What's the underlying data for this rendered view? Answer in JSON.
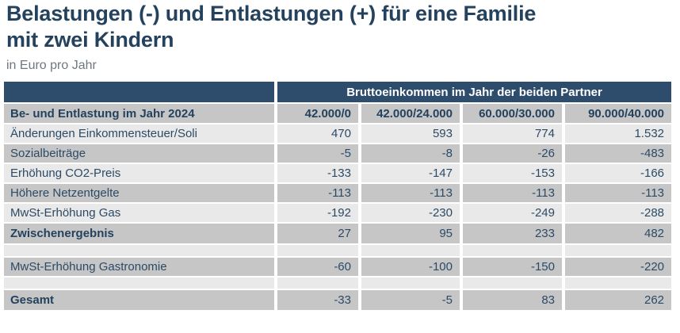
{
  "header": {
    "title_lines": [
      "Belastungen (-) und Entlastungen (+) für eine Familie",
      "mit zwei Kindern"
    ],
    "subtitle": "in Euro pro Jahr"
  },
  "colors": {
    "navy_header": "#2e4c6c",
    "row_light": "#e9e9e9",
    "row_gray": "#c6c6c6",
    "title_text": "#24425e",
    "subtitle_text": "#6e7882",
    "group_header_text": "#ffffff"
  },
  "chart_data": {
    "type": "table",
    "title": "Belastungen (-) und Entlastungen (+) für eine Familie mit zwei Kindern",
    "unit": "in Euro pro Jahr",
    "group_header": "Bruttoeinkommen im Jahr der beiden Partner",
    "row_header": "Be- und Entlastung im Jahr 2024",
    "columns": [
      "42.000/0",
      "42.000/24.000",
      "60.000/30.000",
      "90.000/40.000"
    ],
    "rows": [
      {
        "label": "Änderungen Einkommensteuer/Soli",
        "values": [
          "470",
          "593",
          "774",
          "1.532"
        ],
        "style": "light",
        "bold": false
      },
      {
        "label": "Sozialbeiträge",
        "values": [
          "-5",
          "-8",
          "-26",
          "-483"
        ],
        "style": "gray",
        "bold": false
      },
      {
        "label": "Erhöhung CO2-Preis",
        "values": [
          "-133",
          "-147",
          "-153",
          "-166"
        ],
        "style": "light",
        "bold": false
      },
      {
        "label": "Höhere Netzentgelte",
        "values": [
          "-113",
          "-113",
          "-113",
          "-113"
        ],
        "style": "gray",
        "bold": false
      },
      {
        "label": "MwSt-Erhöhung Gas",
        "values": [
          "-192",
          "-230",
          "-249",
          "-288"
        ],
        "style": "light",
        "bold": false
      },
      {
        "label": "Zwischenergebnis",
        "values": [
          "27",
          "95",
          "233",
          "482"
        ],
        "style": "gray",
        "bold": true
      },
      {
        "label": "",
        "values": [
          "",
          "",
          "",
          ""
        ],
        "style": "spacer",
        "bold": false
      },
      {
        "label": "MwSt-Erhöhung Gastronomie",
        "values": [
          "-60",
          "-100",
          "-150",
          "-220"
        ],
        "style": "gray",
        "bold": false
      },
      {
        "label": "",
        "values": [
          "",
          "",
          "",
          ""
        ],
        "style": "spacer",
        "bold": false
      },
      {
        "label": "Gesamt",
        "values": [
          "-33",
          "-5",
          "83",
          "262"
        ],
        "style": "gray",
        "bold": true
      }
    ]
  }
}
